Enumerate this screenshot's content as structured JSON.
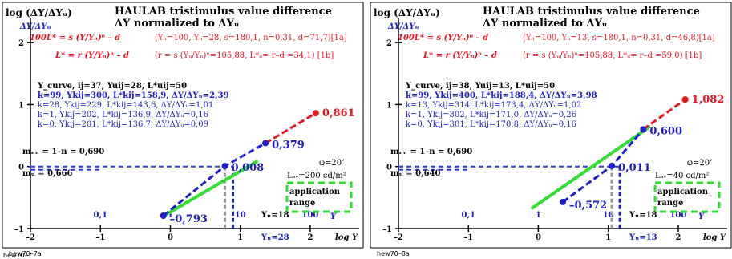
{
  "panels": [
    {
      "id": "left",
      "ylabel": "log (ΔY/ΔYᵤ)",
      "title_line1": "HAULAB tristimulus value difference",
      "title_line2": "ΔY normalized to ΔYᵤ",
      "axis_unit_label": "ΔY/ΔYᵤ",
      "formula_1a_left": "100L* = s (Y/Yₙ)ⁿ – d",
      "formula_1a_right": "(Yₙ=100, Yᵤ=28, s=180,1, n=0,31, d=71,7)[1a]",
      "formula_1b_left": "L* = r (Y/Yₙ)ⁿ – d",
      "formula_1b_right": "(r = s (Yᵤ/Yₙ)ⁿ=105,88, L*ᵤ= r–d =34,1)  [1b]",
      "info": [
        "Y_curve, ij=37, Yuij=28, L*uij=50",
        "k=99, Ykij=300, L*kij=158,9, ΔY/ΔYᵤ=2,39",
        "k=28, Ykij=229, L*kij=143,6, ΔY/ΔYᵤ=1,01",
        "k=1, Ykij=202, L*kij=136,9, ΔY/ΔYᵤ=0,16",
        "k=0, Ykij=201, L*kij=136,7, ΔY/ΔYᵤ=0,09"
      ],
      "mnu": "mₙᵤ = 1–n = 0,690",
      "mu": "mᵤ = 0,666",
      "phi": "φ=20ʼ",
      "law": "Lₐᵥ=200 cd/m²",
      "application": "application",
      "range": "range",
      "yu_tick": "Yᵤ=28",
      "yu18": "Yᵤ=18",
      "code": "hew70–7a",
      "xticks": [
        "–2",
        "–1",
        "0",
        "1",
        "2"
      ],
      "yticks": [
        "–1",
        "0",
        "1",
        "2"
      ],
      "yvals_top": [
        "0,1",
        "1",
        "10",
        "100"
      ],
      "ytick_mark_labels": [
        "2",
        "1",
        "0",
        "–1"
      ],
      "xaxis_label": "log Y",
      "Y_label": "Y",
      "value_labels": {
        "top": "0,861",
        "upper": "0,379",
        "mid": "0,008",
        "low": "–0,793"
      }
    },
    {
      "id": "right",
      "ylabel": "log (ΔY/ΔYᵤ)",
      "title_line1": "HAULAB tristimulus value difference",
      "title_line2": "ΔY normalized to ΔYᵤ",
      "axis_unit_label": "ΔY/ΔYᵤ",
      "formula_1a_left": "100L* = s (Y/Yₙ)ⁿ – d",
      "formula_1a_right": "(Yₙ=100, Yᵤ=13, s=180,1, n=0,31, d=46,8)[1a]",
      "formula_1b_left": "L* = r (Y/Yₙ)ⁿ – d",
      "formula_1b_right": "(r = s (Yᵤ/Yₙ)ⁿ=105,88, L*ᵤ= r–d =59,0)  [1b]",
      "info": [
        "Y_curve, ij=38, Yuij=13, L*uij=50",
        "k=99, Ykij=400, L*kij=188,4, ΔY/ΔYᵤ=3,98",
        "k=13, Ykij=314, L*kij=173,4, ΔY/ΔYᵤ=1,02",
        "k=1, Ykij=302, L*kij=171,0, ΔY/ΔYᵤ=0,26",
        "k=0, Ykij=301, L*kij=170,8, ΔY/ΔYᵤ=0,16"
      ],
      "mnu": "mₙᵤ = 1–n = 0,690",
      "mu": "mᵤ = 0,640",
      "phi": "φ=20ʼ",
      "law": "Lₐᵥ=40 cd/m²",
      "application": "application",
      "range": "range",
      "yu_tick": "Yᵤ=13",
      "yu18": "Yᵤ=18",
      "code": "hew70–8a",
      "xticks": [
        "–2",
        "–1",
        "0",
        "1",
        "2"
      ],
      "yticks": [
        "–1",
        "0",
        "1",
        "2"
      ],
      "yvals_top": [
        "0,1",
        "1",
        "10",
        "100"
      ],
      "ytick_mark_labels": [
        "2",
        "1",
        "0",
        "–1"
      ],
      "xaxis_label": "log Y",
      "Y_label": "Y",
      "value_labels": {
        "top": "1,082",
        "upper": "0,600",
        "mid": "0,011",
        "low": "–0,572"
      }
    }
  ],
  "footer_code": "hew70–7",
  "colors": {
    "red": "#e8141e",
    "blue": "#1e1ecc",
    "green": "#33dd33",
    "grid_dash": "#2f3fd0",
    "gray": "#999999"
  },
  "chart_data": [
    {
      "type": "line",
      "xlabel": "log Y",
      "ylabel": "log (ΔY/ΔYᵤ)",
      "xlim": [
        -2,
        2.7
      ],
      "ylim": [
        -1,
        2.3
      ],
      "series": [
        {
          "values_x": [
            -0.1,
            0.78,
            1.36,
            2.08
          ],
          "values_y": [
            -0.793,
            0.008,
            0.379,
            0.861
          ]
        },
        {
          "values_x": [
            0.0,
            1.2
          ],
          "values_y": [
            -0.7,
            0.06
          ]
        }
      ]
    },
    {
      "type": "line",
      "xlabel": "log Y",
      "ylabel": "log (ΔY/ΔYᵤ)",
      "xlim": [
        -2,
        2.7
      ],
      "ylim": [
        -1,
        2.3
      ],
      "series": [
        {
          "values_x": [
            0.35,
            1.05,
            1.5,
            2.1
          ],
          "values_y": [
            -0.572,
            0.011,
            0.6,
            1.082
          ]
        },
        {
          "values_x": [
            0.0,
            1.55
          ],
          "values_y": [
            -0.58,
            0.62
          ]
        }
      ]
    }
  ]
}
